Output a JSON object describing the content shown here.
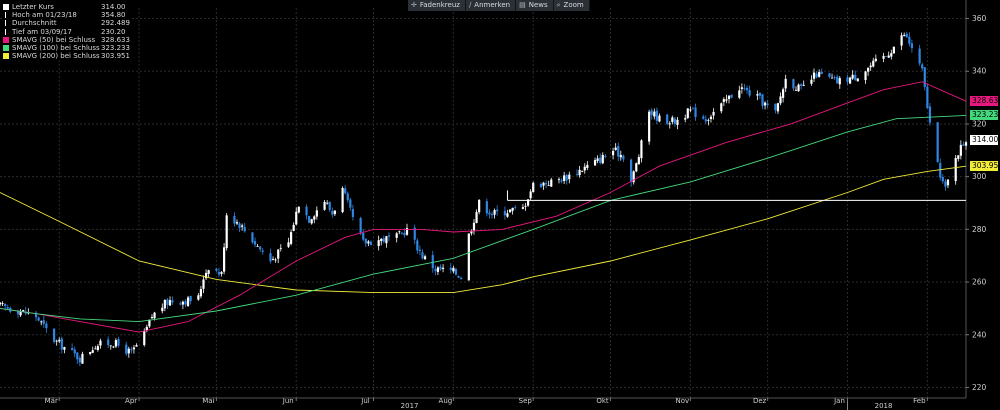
{
  "toolbar": {
    "buttons": [
      {
        "label": "Fadenkreuz",
        "icon": "crosshair-icon",
        "glyph": "✛"
      },
      {
        "label": "Anmerken",
        "icon": "pencil-icon",
        "glyph": "∕"
      },
      {
        "label": "News",
        "icon": "news-icon",
        "glyph": "▤"
      },
      {
        "label": "Zoom",
        "icon": "magnifier-icon",
        "glyph": "⌕"
      }
    ]
  },
  "legend": [
    {
      "label": "Letzter Kurs",
      "value": "314.00",
      "color": "#ffffff"
    },
    {
      "label": "Hoch am 01/23/18",
      "value": "354.80",
      "color": "#ffffff"
    },
    {
      "label": "Durchschnitt",
      "value": "292.489",
      "color": "#ffffff"
    },
    {
      "label": "Tief am 03/09/17",
      "value": "230.20",
      "color": "#ffffff"
    },
    {
      "label": "SMAVG (50) bei Schluss",
      "value": "328.633",
      "color": "#e8177f"
    },
    {
      "label": "SMAVG (100) bei Schluss",
      "value": "323.233",
      "color": "#43d87c"
    },
    {
      "label": "SMAVG (200) bei Schluss",
      "value": "303.951",
      "color": "#f2ec3a"
    }
  ],
  "price_tags": [
    {
      "value": 328.633,
      "label": "328.633",
      "color": "#e8177f"
    },
    {
      "value": 323.233,
      "label": "323.233",
      "color": "#43d87c"
    },
    {
      "value": 314.0,
      "label": "314.00",
      "color": "#ffffff"
    },
    {
      "value": 303.951,
      "label": "303.951",
      "color": "#f2ec3a"
    }
  ],
  "chart_data": {
    "type": "candlestick",
    "x_domain": [
      "2017-02-06",
      "2018-02-16"
    ],
    "ylim": [
      216,
      364
    ],
    "y_ticks": [
      220,
      240,
      260,
      280,
      300,
      320,
      340,
      360
    ],
    "x_ticks": [
      {
        "label": "Mär",
        "date": "2017-03-01"
      },
      {
        "label": "Apr",
        "date": "2017-04-01"
      },
      {
        "label": "Mai",
        "date": "2017-05-01"
      },
      {
        "label": "Jun",
        "date": "2017-06-01"
      },
      {
        "label": "Jul",
        "date": "2017-07-01"
      },
      {
        "label": "Aug",
        "date": "2017-08-01"
      },
      {
        "label": "Sep",
        "date": "2017-09-01"
      },
      {
        "label": "Okt",
        "date": "2017-10-01"
      },
      {
        "label": "Nov",
        "date": "2017-11-01"
      },
      {
        "label": "Dez",
        "date": "2017-12-01"
      },
      {
        "label": "Jan",
        "date": "2018-01-01"
      },
      {
        "label": "Feb",
        "date": "2018-02-01"
      }
    ],
    "year_labels": [
      {
        "label": "2017",
        "date": "2017-07-15"
      },
      {
        "label": "2018",
        "date": "2018-01-15"
      }
    ],
    "year_separators": [
      "2018-01-01"
    ],
    "grid": true,
    "legend_position": "top-left",
    "colors": {
      "up": "#ffffff",
      "down": "#2f86e3",
      "bg": "#000000"
    },
    "price_path": [
      [
        "2017-02-06",
        251
      ],
      [
        "2017-02-14",
        249
      ],
      [
        "2017-02-20",
        247
      ],
      [
        "2017-02-27",
        238
      ],
      [
        "2017-03-09",
        231
      ],
      [
        "2017-03-15",
        236
      ],
      [
        "2017-03-22",
        237
      ],
      [
        "2017-03-29",
        233
      ],
      [
        "2017-04-03",
        240
      ],
      [
        "2017-04-06",
        247
      ],
      [
        "2017-04-10",
        251
      ],
      [
        "2017-04-13",
        253
      ],
      [
        "2017-04-20",
        253
      ],
      [
        "2017-04-24",
        254
      ],
      [
        "2017-04-26",
        262
      ],
      [
        "2017-04-28",
        266
      ],
      [
        "2017-05-03",
        263
      ],
      [
        "2017-05-05",
        286
      ],
      [
        "2017-05-10",
        282
      ],
      [
        "2017-05-15",
        276
      ],
      [
        "2017-05-22",
        268
      ],
      [
        "2017-05-29",
        275
      ],
      [
        "2017-06-02",
        290
      ],
      [
        "2017-06-06",
        284
      ],
      [
        "2017-06-12",
        291
      ],
      [
        "2017-06-15",
        286
      ],
      [
        "2017-06-19",
        295
      ],
      [
        "2017-06-23",
        284
      ],
      [
        "2017-06-27",
        275
      ],
      [
        "2017-07-03",
        276
      ],
      [
        "2017-07-10",
        277
      ],
      [
        "2017-07-14",
        280
      ],
      [
        "2017-07-20",
        270
      ],
      [
        "2017-07-25",
        265
      ],
      [
        "2017-08-01",
        264
      ],
      [
        "2017-08-04",
        262
      ],
      [
        "2017-08-07",
        278
      ],
      [
        "2017-08-11",
        290
      ],
      [
        "2017-08-16",
        286
      ],
      [
        "2017-08-22",
        287
      ],
      [
        "2017-08-28",
        288
      ],
      [
        "2017-09-01",
        297
      ],
      [
        "2017-09-08",
        298
      ],
      [
        "2017-09-14",
        300
      ],
      [
        "2017-09-20",
        303
      ],
      [
        "2017-09-26",
        306
      ],
      [
        "2017-10-02",
        310
      ],
      [
        "2017-10-06",
        308
      ],
      [
        "2017-10-09",
        298
      ],
      [
        "2017-10-12",
        308
      ],
      [
        "2017-10-16",
        325
      ],
      [
        "2017-10-20",
        322
      ],
      [
        "2017-10-26",
        321
      ],
      [
        "2017-11-01",
        325
      ],
      [
        "2017-11-07",
        322
      ],
      [
        "2017-11-13",
        327
      ],
      [
        "2017-11-20",
        334
      ],
      [
        "2017-11-27",
        330
      ],
      [
        "2017-12-04",
        324
      ],
      [
        "2017-12-08",
        337
      ],
      [
        "2017-12-14",
        333
      ],
      [
        "2017-12-20",
        339
      ],
      [
        "2017-12-28",
        336
      ],
      [
        "2018-01-04",
        338
      ],
      [
        "2018-01-10",
        342
      ],
      [
        "2018-01-16",
        346
      ],
      [
        "2018-01-23",
        354
      ],
      [
        "2018-01-26",
        349
      ],
      [
        "2018-01-30",
        340
      ],
      [
        "2018-02-02",
        320
      ],
      [
        "2018-02-05",
        304
      ],
      [
        "2018-02-08",
        295
      ],
      [
        "2018-02-12",
        308
      ],
      [
        "2018-02-14",
        311
      ],
      [
        "2018-02-16",
        314
      ]
    ],
    "series": [
      {
        "name": "SMAVG (200) bei Schluss",
        "color": "#f2ec3a",
        "points": [
          [
            "2017-02-06",
            294
          ],
          [
            "2017-03-01",
            283
          ],
          [
            "2017-04-01",
            268
          ],
          [
            "2017-05-01",
            261
          ],
          [
            "2017-06-01",
            257
          ],
          [
            "2017-07-01",
            256
          ],
          [
            "2017-08-01",
            256
          ],
          [
            "2017-08-20",
            259
          ],
          [
            "2017-09-01",
            262
          ],
          [
            "2017-10-01",
            268
          ],
          [
            "2017-11-01",
            276
          ],
          [
            "2017-12-01",
            284
          ],
          [
            "2018-01-01",
            294
          ],
          [
            "2018-01-15",
            299
          ],
          [
            "2018-02-01",
            302
          ],
          [
            "2018-02-16",
            303.951
          ]
        ]
      },
      {
        "name": "SMAVG (50) bei Schluss",
        "color": "#e8177f",
        "points": [
          [
            "2017-02-06",
            250
          ],
          [
            "2017-02-20",
            248
          ],
          [
            "2017-03-09",
            245
          ],
          [
            "2017-04-01",
            241
          ],
          [
            "2017-04-20",
            245
          ],
          [
            "2017-05-10",
            255
          ],
          [
            "2017-06-01",
            268
          ],
          [
            "2017-06-20",
            277
          ],
          [
            "2017-07-01",
            280
          ],
          [
            "2017-07-20",
            280
          ],
          [
            "2017-08-01",
            279
          ],
          [
            "2017-08-20",
            280
          ],
          [
            "2017-09-10",
            285
          ],
          [
            "2017-10-01",
            294
          ],
          [
            "2017-10-20",
            304
          ],
          [
            "2017-11-15",
            313
          ],
          [
            "2017-12-10",
            320
          ],
          [
            "2018-01-01",
            328
          ],
          [
            "2018-01-15",
            333
          ],
          [
            "2018-01-30",
            336
          ],
          [
            "2018-02-16",
            328.633
          ]
        ]
      },
      {
        "name": "SMAVG (100) bei Schluss",
        "color": "#43d87c",
        "points": [
          [
            "2017-02-06",
            250
          ],
          [
            "2017-02-20",
            248
          ],
          [
            "2017-03-09",
            246
          ],
          [
            "2017-04-01",
            245
          ],
          [
            "2017-05-01",
            249
          ],
          [
            "2017-06-01",
            255
          ],
          [
            "2017-07-01",
            263
          ],
          [
            "2017-08-01",
            269
          ],
          [
            "2017-09-01",
            280
          ],
          [
            "2017-10-01",
            291
          ],
          [
            "2017-11-01",
            298
          ],
          [
            "2017-12-01",
            307
          ],
          [
            "2018-01-01",
            317
          ],
          [
            "2018-01-20",
            322
          ],
          [
            "2018-02-16",
            323.233
          ]
        ]
      }
    ],
    "annotation_lines": [
      {
        "kind": "horizontal",
        "value": 291,
        "from": "2017-08-22",
        "to": "2018-02-16",
        "color": "#ffffff"
      }
    ]
  }
}
